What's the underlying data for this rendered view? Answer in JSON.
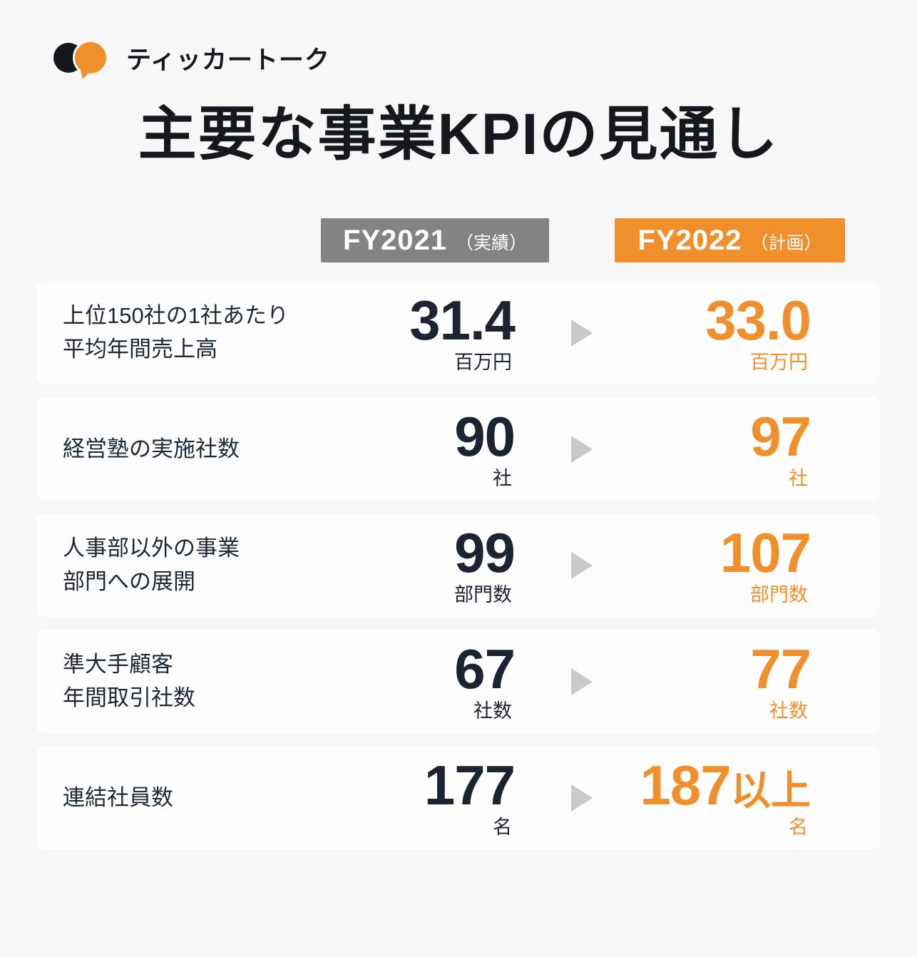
{
  "brand": {
    "name": "ティッカートーク"
  },
  "title": "主要な事業KPIの見通し",
  "columns": [
    {
      "year": "FY2021",
      "qualifier": "（実績）"
    },
    {
      "year": "FY2022",
      "qualifier": "（計画）"
    }
  ],
  "rows": [
    {
      "label": "上位150社の1社あたり\n平均年間売上高",
      "fy2021": {
        "value": "31.4",
        "suffix": "",
        "unit": "百万円"
      },
      "fy2022": {
        "value": "33.0",
        "suffix": "",
        "unit": "百万円"
      }
    },
    {
      "label": "経営塾の実施社数",
      "fy2021": {
        "value": "90",
        "suffix": "",
        "unit": "社"
      },
      "fy2022": {
        "value": "97",
        "suffix": "",
        "unit": "社"
      }
    },
    {
      "label": "人事部以外の事業\n部門への展開",
      "fy2021": {
        "value": "99",
        "suffix": "",
        "unit": "部門数"
      },
      "fy2022": {
        "value": "107",
        "suffix": "",
        "unit": "部門数"
      }
    },
    {
      "label": "準大手顧客\n年間取引社数",
      "fy2021": {
        "value": "67",
        "suffix": "",
        "unit": "社数"
      },
      "fy2022": {
        "value": "77",
        "suffix": "",
        "unit": "社数"
      }
    },
    {
      "label": "連結社員数",
      "fy2021": {
        "value": "177",
        "suffix": "",
        "unit": "名"
      },
      "fy2022": {
        "value": "187",
        "suffix": "以上",
        "unit": "名"
      }
    }
  ],
  "chart_data": {
    "type": "table",
    "title": "主要な事業KPIの見通し",
    "columns": [
      "FY2021（実績）",
      "FY2022（計画）"
    ],
    "rows": [
      {
        "label": "上位150社の1社あたり平均年間売上高",
        "fy2021": 31.4,
        "fy2021_unit": "百万円",
        "fy2022": 33.0,
        "fy2022_unit": "百万円"
      },
      {
        "label": "経営塾の実施社数",
        "fy2021": 90,
        "fy2021_unit": "社",
        "fy2022": 97,
        "fy2022_unit": "社"
      },
      {
        "label": "人事部以外の事業部門への展開",
        "fy2021": 99,
        "fy2021_unit": "部門数",
        "fy2022": 107,
        "fy2022_unit": "部門数"
      },
      {
        "label": "準大手顧客年間取引社数",
        "fy2021": 67,
        "fy2021_unit": "社数",
        "fy2022": 77,
        "fy2022_unit": "社数"
      },
      {
        "label": "連結社員数",
        "fy2021": 177,
        "fy2021_unit": "名",
        "fy2022": "187以上",
        "fy2022_unit": "名"
      }
    ]
  },
  "colors": {
    "accent_orange": "#F0902C",
    "neutral_gray": "#838383",
    "text_dark": "#1B2430",
    "arrow_gray": "#C9C9C9",
    "background": "#F7F7F7",
    "card_background": "#FDFDFD"
  }
}
